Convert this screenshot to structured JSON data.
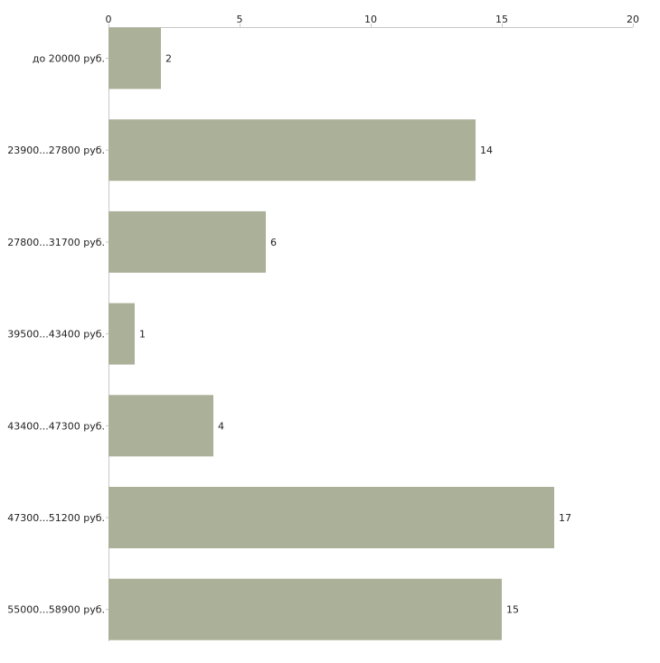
{
  "chart_data": {
    "type": "bar",
    "orientation": "horizontal",
    "categories": [
      "до 20000 руб.",
      "23900...27800 руб.",
      "27800...31700 руб.",
      "39500...43400 руб.",
      "43400...47300 руб.",
      "47300...51200 руб.",
      "55000...58900 руб."
    ],
    "values": [
      2,
      14,
      6,
      1,
      4,
      17,
      15
    ],
    "xlim": [
      0,
      20
    ],
    "xticks": [
      0,
      5,
      10,
      15,
      20
    ],
    "axis_position": "top",
    "grid": false,
    "legend": "none",
    "data_labels": true,
    "bar_color": "#abb198",
    "axis_color": "#c8c8c8",
    "text_color": "#222222"
  }
}
